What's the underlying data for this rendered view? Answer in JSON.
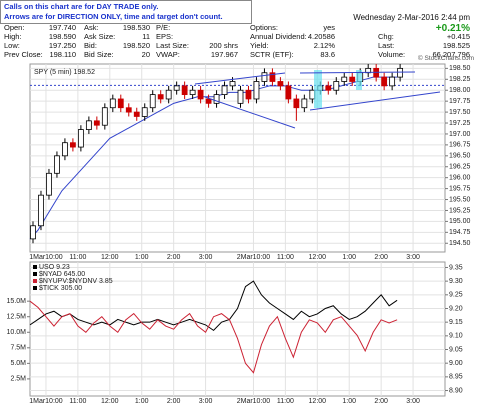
{
  "notes": [
    "Calls on this chart are for DAY TRADE only.",
    "Arrows are for DIRECTION ONLY, time and target don't count."
  ],
  "quote": {
    "date": "Wednesday  2-Mar-2016  2:44 pm",
    "change_pct": "+0.21%",
    "credit": "© StockCharts.com",
    "columns": [
      [
        [
          "Open:",
          "197.740"
        ],
        [
          "High:",
          "198.590"
        ],
        [
          "Low:",
          "197.250"
        ],
        [
          "Prev Close:",
          "198.110"
        ]
      ],
      [
        [
          "Ask:",
          "198.530"
        ],
        [
          "Ask Size:",
          "11"
        ],
        [
          "Bid:",
          "198.520"
        ],
        [
          "Bid Size:",
          "20"
        ]
      ],
      [
        [
          "P/E:"
        ],
        [
          "EPS:"
        ],
        [
          "Last Size:",
          "200 shrs"
        ],
        [
          "VWAP:",
          "197.967"
        ]
      ],
      [
        [
          "Options:",
          "yes"
        ],
        [
          "Annual Dividend:",
          "4.20586"
        ],
        [
          "Yield:",
          "2.12%"
        ],
        [
          "SCTR (ETF):",
          "83.6"
        ]
      ],
      [
        [
          "Chg:",
          "+0.415"
        ],
        [
          "Last:",
          "198.525"
        ],
        [
          "Volume:",
          "66,207,796"
        ]
      ]
    ]
  },
  "chart_data": [
    {
      "type": "candlestick",
      "legend": "SPY (5 min) 198.52",
      "up_color": "#000000",
      "down_color": "#cc0000",
      "grid": true,
      "x": [
        0,
        15,
        30,
        45,
        60,
        75,
        90,
        105,
        120,
        135,
        150,
        165,
        180,
        195,
        210,
        225,
        240,
        255,
        270,
        285,
        300,
        315,
        330,
        345,
        360,
        375,
        390,
        405,
        420,
        435,
        450,
        465,
        480,
        495,
        510,
        525,
        540,
        555,
        570,
        585,
        600,
        615,
        630,
        645,
        660,
        675,
        690
      ],
      "open": [
        194.6,
        194.9,
        195.6,
        196.1,
        196.5,
        196.8,
        196.7,
        197.1,
        197.3,
        197.2,
        197.6,
        197.8,
        197.6,
        197.5,
        197.4,
        197.6,
        197.9,
        197.8,
        198.0,
        198.1,
        197.9,
        198.0,
        197.8,
        197.7,
        197.9,
        198.1,
        197.7,
        198.0,
        197.8,
        198.2,
        198.4,
        198.2,
        198.1,
        197.8,
        197.6,
        197.8,
        198.0,
        198.1,
        198.0,
        198.2,
        198.3,
        198.2,
        198.4,
        198.5,
        198.3,
        198.1,
        198.3
      ],
      "high": [
        195.0,
        195.7,
        196.2,
        196.6,
        196.9,
        196.9,
        197.2,
        197.4,
        197.4,
        197.7,
        197.9,
        197.9,
        197.7,
        197.6,
        197.7,
        198.0,
        198.0,
        198.1,
        198.2,
        198.2,
        198.1,
        198.1,
        197.9,
        198.0,
        198.2,
        198.3,
        198.1,
        198.1,
        198.3,
        198.5,
        198.5,
        198.3,
        198.2,
        197.9,
        197.9,
        198.1,
        198.2,
        198.2,
        198.3,
        198.4,
        198.4,
        198.5,
        198.6,
        198.6,
        198.4,
        198.4,
        198.6
      ],
      "low": [
        194.5,
        194.8,
        195.5,
        196.0,
        196.4,
        196.6,
        196.6,
        197.0,
        197.1,
        197.1,
        197.5,
        197.5,
        197.4,
        197.3,
        197.3,
        197.5,
        197.7,
        197.7,
        197.9,
        197.8,
        197.8,
        197.7,
        197.6,
        197.6,
        197.8,
        198.0,
        197.6,
        197.7,
        197.7,
        198.1,
        198.1,
        198.0,
        197.7,
        197.3,
        197.5,
        197.7,
        197.9,
        197.9,
        197.9,
        198.1,
        198.1,
        198.1,
        198.3,
        198.2,
        198.0,
        198.0,
        198.2
      ],
      "close": [
        194.9,
        195.6,
        196.1,
        196.5,
        196.8,
        196.7,
        197.1,
        197.3,
        197.2,
        197.6,
        197.8,
        197.6,
        197.5,
        197.4,
        197.6,
        197.9,
        197.8,
        198.0,
        198.1,
        197.9,
        198.0,
        197.8,
        197.7,
        197.9,
        198.1,
        198.2,
        198.0,
        197.8,
        198.2,
        198.4,
        198.2,
        198.1,
        197.8,
        197.6,
        197.8,
        198.0,
        198.1,
        198.0,
        198.2,
        198.3,
        198.2,
        198.4,
        198.5,
        198.3,
        198.1,
        198.3,
        198.5
      ],
      "overlays": [
        {
          "color": "#3344cc",
          "values": [
            194.6,
            194.8,
            195.1,
            195.4,
            195.7,
            195.9,
            196.1,
            196.3,
            196.5,
            196.7,
            196.9,
            197.0,
            197.1,
            197.2,
            197.3,
            197.4,
            197.5,
            197.6,
            197.7,
            197.75,
            197.8,
            197.85,
            197.85,
            197.85,
            197.9,
            197.95,
            197.95,
            197.95,
            198.0,
            198.05,
            198.1,
            198.1,
            198.1,
            198.05,
            198.0,
            198.0,
            198.0,
            198.0,
            198.05,
            198.1,
            198.15,
            198.2,
            198.25,
            198.3,
            198.3,
            198.3,
            198.3
          ]
        }
      ],
      "reference_line": {
        "value": 198.11,
        "color": "#3344cc"
      },
      "xlim": [
        0,
        780
      ],
      "xticks": [
        {
          "value": 30,
          "label": "1Mar10:00"
        },
        {
          "value": 90,
          "label": "11:00"
        },
        {
          "value": 150,
          "label": "12:00"
        },
        {
          "value": 210,
          "label": "1:00"
        },
        {
          "value": 270,
          "label": "2:00"
        },
        {
          "value": 330,
          "label": "3:00"
        },
        {
          "value": 420,
          "label": "2Mar10:00"
        },
        {
          "value": 480,
          "label": "11:00"
        },
        {
          "value": 540,
          "label": "12:00"
        },
        {
          "value": 600,
          "label": "1:00"
        },
        {
          "value": 660,
          "label": "2:00"
        },
        {
          "value": 720,
          "label": "3:00"
        }
      ],
      "ylim": [
        194.3,
        198.6
      ],
      "yticks": [
        {
          "value": 194.5,
          "label": "194.50"
        },
        {
          "value": 194.75,
          "label": "194.75"
        },
        {
          "value": 195,
          "label": "195.00"
        },
        {
          "value": 195.25,
          "label": "195.25"
        },
        {
          "value": 195.5,
          "label": "195.50"
        },
        {
          "value": 195.75,
          "label": "195.75"
        },
        {
          "value": 196,
          "label": "196.00"
        },
        {
          "value": 196.25,
          "label": "196.25"
        },
        {
          "value": 196.5,
          "label": "196.50"
        },
        {
          "value": 196.75,
          "label": "196.75"
        },
        {
          "value": 197,
          "label": "197.00"
        },
        {
          "value": 197.25,
          "label": "197.25"
        },
        {
          "value": 197.5,
          "label": "197.50"
        },
        {
          "value": 197.75,
          "label": "197.75"
        },
        {
          "value": 198,
          "label": "198.00"
        },
        {
          "value": 198.25,
          "label": "198.25"
        },
        {
          "value": 198.5,
          "label": "198.50"
        }
      ]
    },
    {
      "type": "line",
      "grid": true,
      "x": [
        0,
        15,
        30,
        45,
        60,
        75,
        90,
        105,
        120,
        135,
        150,
        165,
        180,
        195,
        210,
        225,
        240,
        255,
        270,
        285,
        300,
        315,
        330,
        345,
        360,
        375,
        390,
        405,
        420,
        435,
        450,
        465,
        480,
        495,
        510,
        525,
        540,
        555,
        570,
        585,
        600,
        615,
        630,
        645,
        660,
        675,
        690
      ],
      "series": [
        {
          "name": "USO 9.23",
          "color": "#000000",
          "values": [
            9.14,
            9.16,
            9.18,
            9.19,
            9.17,
            9.18,
            9.16,
            9.15,
            9.14,
            9.15,
            9.14,
            9.16,
            9.15,
            9.14,
            9.15,
            9.15,
            9.16,
            9.15,
            9.14,
            9.15,
            9.16,
            9.15,
            9.14,
            9.12,
            9.15,
            9.16,
            9.2,
            9.28,
            9.3,
            9.25,
            9.22,
            9.2,
            9.18,
            9.16,
            9.19,
            9.17,
            9.18,
            9.2,
            9.21,
            9.18,
            9.16,
            9.17,
            9.19,
            9.22,
            9.25,
            9.21,
            9.23
          ]
        },
        {
          "name": "$NYUPV:$NYDNV 3.85",
          "color": "#cc2233",
          "axis": "y2",
          "values": [
            15000000,
            14000000,
            12500000,
            11000000,
            12500000,
            13000000,
            11000000,
            10000000,
            11500000,
            12500000,
            11000000,
            10000000,
            12000000,
            13000000,
            11500000,
            10500000,
            12000000,
            11000000,
            10500000,
            12000000,
            13000000,
            11000000,
            10000000,
            12500000,
            13000000,
            12000000,
            9000000,
            5000000,
            3500000,
            8000000,
            11000000,
            12500000,
            9000000,
            6000000,
            10000000,
            12000000,
            11500000,
            10000000,
            12000000,
            12500000,
            11000000,
            9500000,
            7000000,
            10000000,
            12000000,
            11500000,
            12000000
          ]
        }
      ],
      "legend_extra": [
        "$NYAD 645.00",
        "$TICK 305.00"
      ],
      "xlim": [
        0,
        780
      ],
      "xticks": [
        {
          "value": 30,
          "label": "1Mar10:00"
        },
        {
          "value": 90,
          "label": "11:00"
        },
        {
          "value": 150,
          "label": "12:00"
        },
        {
          "value": 210,
          "label": "1:00"
        },
        {
          "value": 270,
          "label": "2:00"
        },
        {
          "value": 330,
          "label": "3:00"
        },
        {
          "value": 420,
          "label": "2Mar10:00"
        },
        {
          "value": 480,
          "label": "11:00"
        },
        {
          "value": 540,
          "label": "12:00"
        },
        {
          "value": 600,
          "label": "1:00"
        },
        {
          "value": 660,
          "label": "2:00"
        },
        {
          "value": 720,
          "label": "3:00"
        }
      ],
      "ylim": [
        8.88,
        9.37
      ],
      "yticks": [
        {
          "value": 8.9,
          "label": "8.90"
        },
        {
          "value": 8.95,
          "label": "8.95"
        },
        {
          "value": 9,
          "label": "9.00"
        },
        {
          "value": 9.05,
          "label": "9.05"
        },
        {
          "value": 9.1,
          "label": "9.10"
        },
        {
          "value": 9.15,
          "label": "9.15"
        },
        {
          "value": 9.2,
          "label": "9.20"
        },
        {
          "value": 9.25,
          "label": "9.25"
        },
        {
          "value": 9.3,
          "label": "9.30"
        },
        {
          "value": 9.35,
          "label": "9.35"
        }
      ],
      "y2lim": [
        -250000,
        21300000
      ],
      "y2ticks": [
        {
          "value": 2500000,
          "label": "2.5M"
        },
        {
          "value": 5000000,
          "label": "5.0M"
        },
        {
          "value": 7500000,
          "label": "7.5M"
        },
        {
          "value": 10000000,
          "label": "10.0M"
        },
        {
          "value": 12500000,
          "label": "12.5M"
        },
        {
          "value": 15000000,
          "label": "15.0M"
        }
      ]
    }
  ]
}
